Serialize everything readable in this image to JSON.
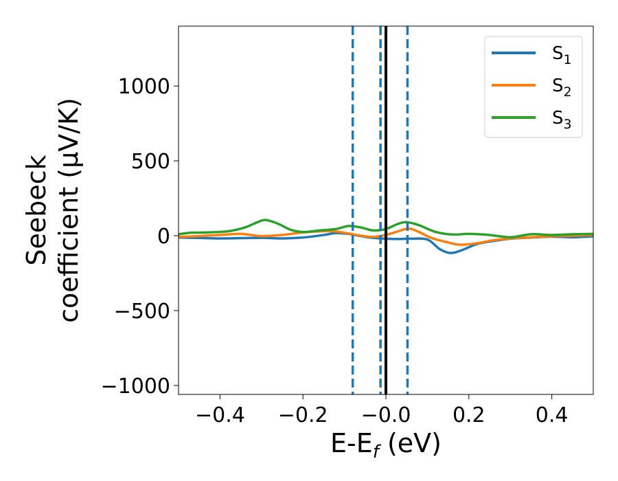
{
  "chart_data": {
    "type": "line",
    "xlabel": "E-E",
    "xlabel_sub": "f",
    "xlabel_unit": " (eV)",
    "ylabel_line1": "Seebeck",
    "ylabel_line2": "coefficient  (μV/K)",
    "xlim": [
      -0.5,
      0.5
    ],
    "ylim": [
      -1060,
      1400
    ],
    "xticks": [
      -0.4,
      -0.2,
      0.0,
      0.2,
      0.4
    ],
    "xtick_labels": [
      "−0.4",
      "−0.2",
      "−0.0",
      "0.2",
      "0.4"
    ],
    "yticks": [
      -1000,
      -500,
      0,
      500,
      1000
    ],
    "ytick_labels": [
      "−1000",
      "−500",
      "0",
      "500",
      "1000"
    ],
    "grid": false,
    "legend_position": "top-right",
    "vertical_lines": [
      {
        "x": -0.08,
        "style": "dashed",
        "color": "#1f77b4"
      },
      {
        "x": -0.013,
        "style": "dashed",
        "color": "#1f77b4"
      },
      {
        "x": 0.0,
        "style": "solid",
        "color": "#000000"
      },
      {
        "x": 0.052,
        "style": "dashed",
        "color": "#1f77b4"
      }
    ],
    "series": [
      {
        "name": "S",
        "sub": "1",
        "color": "#1f77b4",
        "points": [
          [
            -0.5,
            -12
          ],
          [
            -0.45,
            -15
          ],
          [
            -0.4,
            -18
          ],
          [
            -0.35,
            -16
          ],
          [
            -0.3,
            -14
          ],
          [
            -0.25,
            -18
          ],
          [
            -0.2,
            -12
          ],
          [
            -0.15,
            5
          ],
          [
            -0.12,
            18
          ],
          [
            -0.09,
            12
          ],
          [
            -0.06,
            -3
          ],
          [
            -0.03,
            -15
          ],
          [
            0.0,
            -20
          ],
          [
            0.03,
            -22
          ],
          [
            0.06,
            -20
          ],
          [
            0.1,
            -25
          ],
          [
            0.13,
            -90
          ],
          [
            0.155,
            -115
          ],
          [
            0.18,
            -100
          ],
          [
            0.22,
            -55
          ],
          [
            0.26,
            -35
          ],
          [
            0.3,
            -20
          ],
          [
            0.35,
            -12
          ],
          [
            0.4,
            -6
          ],
          [
            0.45,
            -10
          ],
          [
            0.5,
            -4
          ]
        ]
      },
      {
        "name": "S",
        "sub": "2",
        "color": "#ff7f0e",
        "points": [
          [
            -0.5,
            -8
          ],
          [
            -0.45,
            -2
          ],
          [
            -0.4,
            5
          ],
          [
            -0.35,
            12
          ],
          [
            -0.3,
            -2
          ],
          [
            -0.25,
            5
          ],
          [
            -0.2,
            22
          ],
          [
            -0.15,
            30
          ],
          [
            -0.12,
            28
          ],
          [
            -0.09,
            15
          ],
          [
            -0.06,
            0
          ],
          [
            -0.03,
            -8
          ],
          [
            0.0,
            5
          ],
          [
            0.03,
            30
          ],
          [
            0.055,
            48
          ],
          [
            0.08,
            25
          ],
          [
            0.11,
            -15
          ],
          [
            0.15,
            -45
          ],
          [
            0.18,
            -60
          ],
          [
            0.22,
            -50
          ],
          [
            0.26,
            -30
          ],
          [
            0.3,
            -18
          ],
          [
            0.35,
            -10
          ],
          [
            0.4,
            -3
          ],
          [
            0.45,
            0
          ],
          [
            0.5,
            5
          ]
        ]
      },
      {
        "name": "S",
        "sub": "3",
        "color": "#2ca02c",
        "points": [
          [
            -0.5,
            10
          ],
          [
            -0.47,
            20
          ],
          [
            -0.43,
            22
          ],
          [
            -0.38,
            30
          ],
          [
            -0.34,
            55
          ],
          [
            -0.31,
            90
          ],
          [
            -0.29,
            105
          ],
          [
            -0.26,
            80
          ],
          [
            -0.23,
            40
          ],
          [
            -0.2,
            25
          ],
          [
            -0.16,
            35
          ],
          [
            -0.12,
            45
          ],
          [
            -0.09,
            65
          ],
          [
            -0.06,
            55
          ],
          [
            -0.03,
            35
          ],
          [
            0.0,
            45
          ],
          [
            0.03,
            80
          ],
          [
            0.05,
            90
          ],
          [
            0.08,
            70
          ],
          [
            0.12,
            25
          ],
          [
            0.16,
            8
          ],
          [
            0.2,
            12
          ],
          [
            0.25,
            5
          ],
          [
            0.3,
            -10
          ],
          [
            0.35,
            10
          ],
          [
            0.4,
            5
          ],
          [
            0.45,
            10
          ],
          [
            0.5,
            12
          ]
        ]
      }
    ]
  }
}
